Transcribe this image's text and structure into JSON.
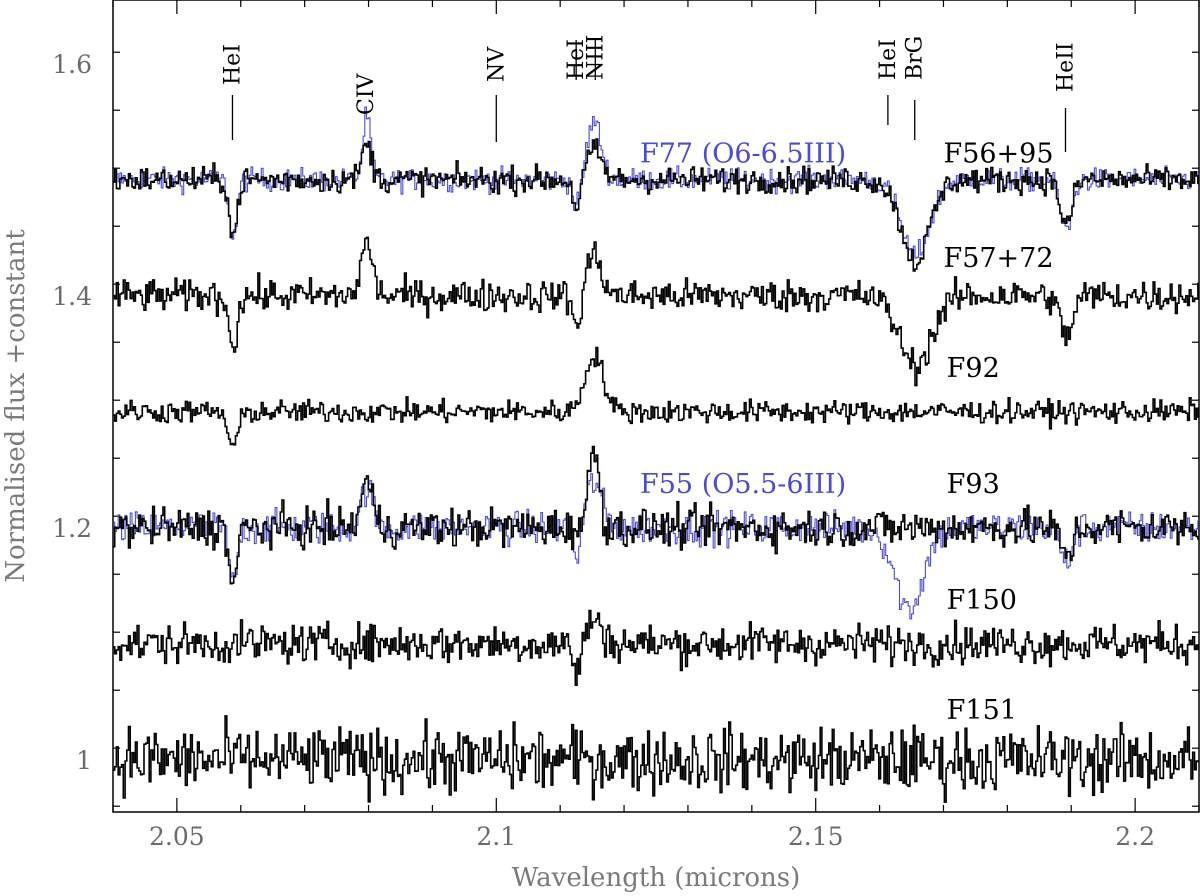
{
  "chart_data": {
    "type": "line",
    "title": "",
    "xlabel": "Wavelength (microns)",
    "ylabel": "Normalised flux +constant",
    "xlim": [
      2.04,
      2.21
    ],
    "ylim": [
      0.955,
      1.655
    ],
    "x_ticks": [
      2.05,
      2.1,
      2.15,
      2.2
    ],
    "x_tick_labels": [
      "2.05",
      "2.1",
      "2.15",
      "2.2"
    ],
    "y_ticks": [
      1.0,
      1.2,
      1.4,
      1.6
    ],
    "y_tick_labels": [
      "1",
      "1.2",
      "1.4",
      "1.6"
    ],
    "line_ids": [
      {
        "label": "HeI",
        "x": 2.0587
      },
      {
        "label": "CIV",
        "x": 2.0796
      },
      {
        "label": "NV",
        "x": 2.1
      },
      {
        "label": "HeI",
        "x": 2.1125
      },
      {
        "label": "NIII",
        "x": 2.1155
      },
      {
        "label": "HeI",
        "x": 2.1613
      },
      {
        "label": "BrG",
        "x": 2.1655
      },
      {
        "label": "HeII",
        "x": 2.1891
      }
    ],
    "series": [
      {
        "name": "F56+95",
        "label_x": 2.17,
        "label_y": 1.515,
        "offset": 1.5,
        "color": "#000000",
        "noise": 0.008,
        "features": [
          [
            2.0587,
            -0.05,
            0.0006
          ],
          [
            2.0796,
            0.03,
            0.0008
          ],
          [
            2.1125,
            -0.025,
            0.0006
          ],
          [
            2.1152,
            0.025,
            0.0012
          ],
          [
            2.1655,
            -0.07,
            0.0022
          ],
          [
            2.1891,
            -0.04,
            0.0009
          ]
        ]
      },
      {
        "name": "F77 (O6-6.5III)",
        "label_x": 2.1225,
        "label_y": 1.515,
        "offset": 1.5,
        "color": "#4a4ae0",
        "noise": 0.007,
        "features": [
          [
            2.0587,
            -0.05,
            0.0006
          ],
          [
            2.0796,
            0.055,
            0.0006
          ],
          [
            2.1125,
            -0.025,
            0.0006
          ],
          [
            2.1152,
            0.05,
            0.0011
          ],
          [
            2.1655,
            -0.065,
            0.0022
          ],
          [
            2.1891,
            -0.045,
            0.0009
          ]
        ]
      },
      {
        "name": "F57+72",
        "label_x": 2.17,
        "label_y": 1.425,
        "offset": 1.4,
        "color": "#000000",
        "noise": 0.01,
        "features": [
          [
            2.0587,
            -0.04,
            0.0007
          ],
          [
            2.0796,
            0.045,
            0.0009
          ],
          [
            2.1125,
            -0.03,
            0.0006
          ],
          [
            2.1152,
            0.035,
            0.0012
          ],
          [
            2.1655,
            -0.06,
            0.0025
          ],
          [
            2.1891,
            -0.035,
            0.001
          ]
        ]
      },
      {
        "name": "F92",
        "label_x": 2.1705,
        "label_y": 1.33,
        "offset": 1.3,
        "color": "#000000",
        "noise": 0.007,
        "features": [
          [
            2.0587,
            -0.03,
            0.0008
          ],
          [
            2.1152,
            0.05,
            0.0014
          ]
        ]
      },
      {
        "name": "F93",
        "label_x": 2.1705,
        "label_y": 1.23,
        "offset": 1.2,
        "color": "#000000",
        "noise": 0.012,
        "features": [
          [
            2.0587,
            -0.05,
            0.0006
          ],
          [
            2.0796,
            0.04,
            0.0009
          ],
          [
            2.1152,
            0.07,
            0.0008
          ],
          [
            2.1891,
            -0.025,
            0.0009
          ]
        ]
      },
      {
        "name": "F55 (O5.5-6III)",
        "label_x": 2.1225,
        "label_y": 1.23,
        "offset": 1.2,
        "color": "#4a4ae0",
        "noise": 0.01,
        "features": [
          [
            2.0587,
            -0.05,
            0.0006
          ],
          [
            2.0796,
            0.035,
            0.0009
          ],
          [
            2.1125,
            -0.03,
            0.0006
          ],
          [
            2.1152,
            0.04,
            0.0012
          ],
          [
            2.1645,
            -0.07,
            0.0022
          ],
          [
            2.1891,
            -0.03,
            0.0009
          ]
        ]
      },
      {
        "name": "F150",
        "label_x": 2.1705,
        "label_y": 1.13,
        "offset": 1.1,
        "color": "#000000",
        "noise": 0.012,
        "features": [
          [
            2.1125,
            -0.025,
            0.0006
          ],
          [
            2.1152,
            0.02,
            0.0012
          ]
        ]
      },
      {
        "name": "F151",
        "label_x": 2.1705,
        "label_y": 1.035,
        "offset": 1.0,
        "color": "#000000",
        "noise": 0.02,
        "features": []
      }
    ]
  }
}
